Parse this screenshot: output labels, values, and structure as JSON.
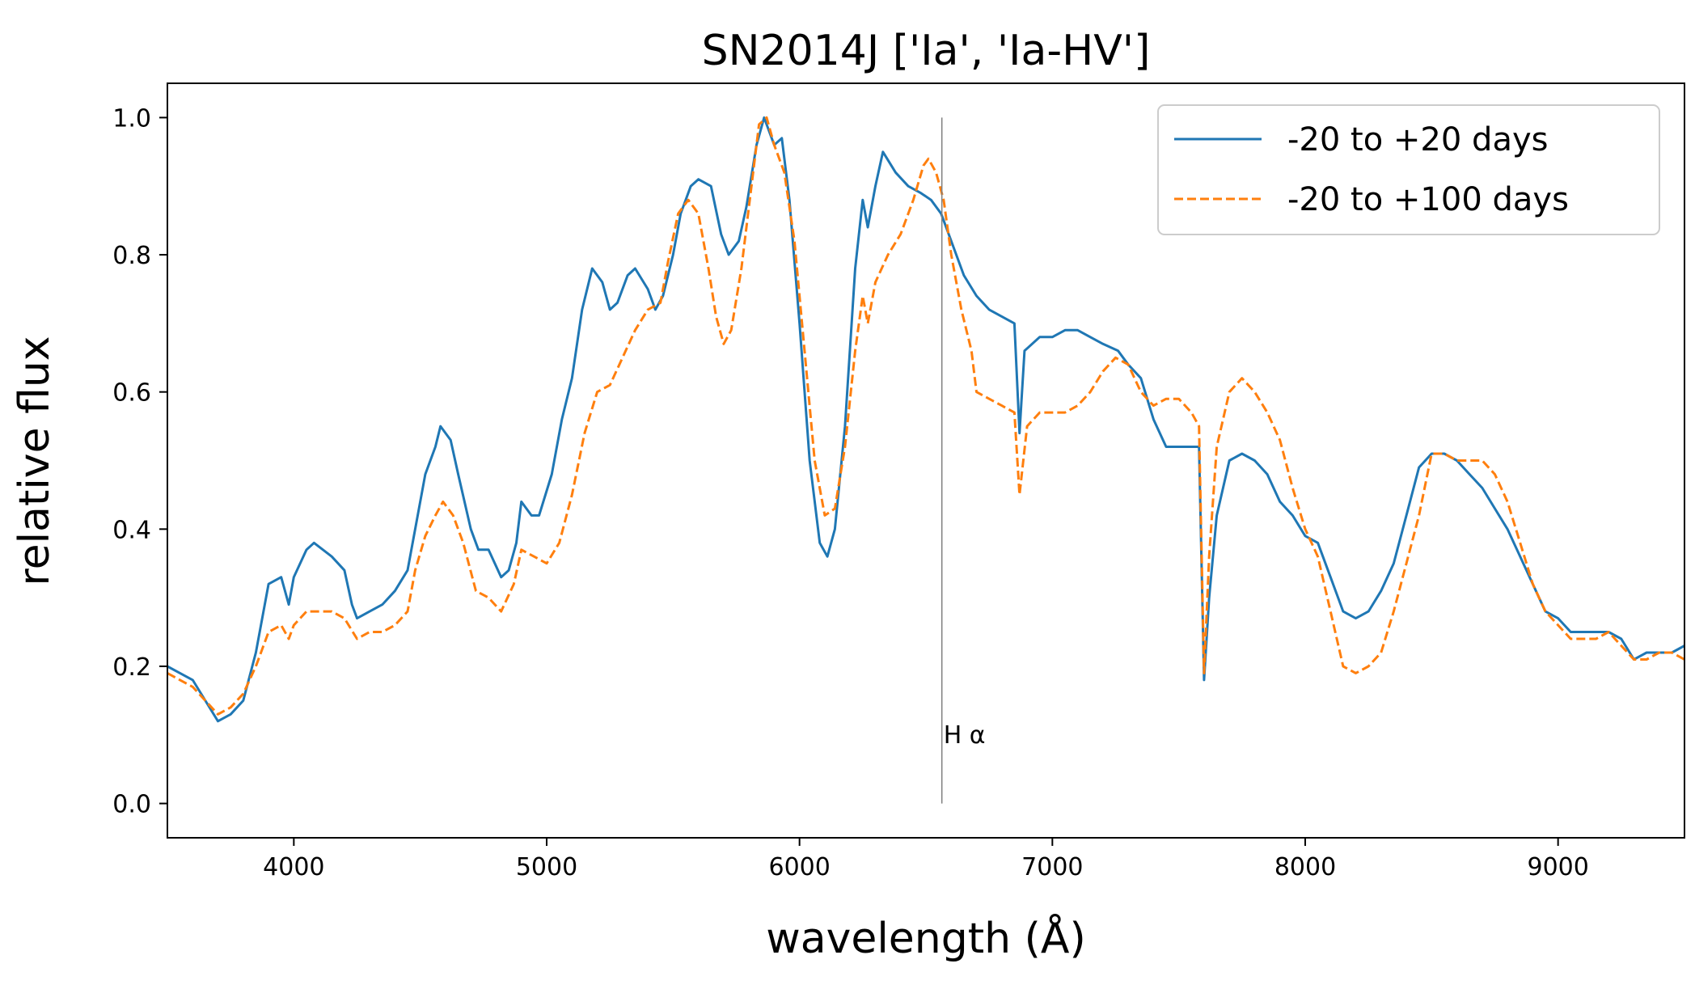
{
  "chart_data": {
    "type": "line",
    "title": "SN2014J ['Ia', 'Ia-HV']",
    "xlabel": "wavelength (Å)",
    "ylabel": "relative flux",
    "xlim": [
      3500,
      9500
    ],
    "ylim": [
      -0.05,
      1.05
    ],
    "xticks": [
      4000,
      5000,
      6000,
      7000,
      8000,
      9000
    ],
    "yticks": [
      0.0,
      0.2,
      0.4,
      0.6,
      0.8,
      1.0
    ],
    "ytick_labels": [
      "0.0",
      "0.2",
      "0.4",
      "0.6",
      "0.8",
      "1.0"
    ],
    "grid": false,
    "legend_position": "top-right",
    "annotation": {
      "label": "H α",
      "x": 6563,
      "y_text": 0.1,
      "line_y": [
        0.0,
        1.0
      ],
      "color": "#808080"
    },
    "series": [
      {
        "name": "-20 to +20 days",
        "color": "#1f77b4",
        "dash": "solid",
        "points": [
          [
            3500,
            0.2
          ],
          [
            3550,
            0.19
          ],
          [
            3600,
            0.18
          ],
          [
            3650,
            0.15
          ],
          [
            3700,
            0.12
          ],
          [
            3750,
            0.13
          ],
          [
            3800,
            0.15
          ],
          [
            3850,
            0.22
          ],
          [
            3900,
            0.32
          ],
          [
            3950,
            0.33
          ],
          [
            3980,
            0.29
          ],
          [
            4000,
            0.33
          ],
          [
            4050,
            0.37
          ],
          [
            4080,
            0.38
          ],
          [
            4150,
            0.36
          ],
          [
            4200,
            0.34
          ],
          [
            4230,
            0.29
          ],
          [
            4250,
            0.27
          ],
          [
            4300,
            0.28
          ],
          [
            4350,
            0.29
          ],
          [
            4400,
            0.31
          ],
          [
            4450,
            0.34
          ],
          [
            4480,
            0.4
          ],
          [
            4520,
            0.48
          ],
          [
            4560,
            0.52
          ],
          [
            4580,
            0.55
          ],
          [
            4620,
            0.53
          ],
          [
            4650,
            0.48
          ],
          [
            4700,
            0.4
          ],
          [
            4730,
            0.37
          ],
          [
            4770,
            0.37
          ],
          [
            4820,
            0.33
          ],
          [
            4850,
            0.34
          ],
          [
            4880,
            0.38
          ],
          [
            4900,
            0.44
          ],
          [
            4940,
            0.42
          ],
          [
            4970,
            0.42
          ],
          [
            5020,
            0.48
          ],
          [
            5060,
            0.56
          ],
          [
            5100,
            0.62
          ],
          [
            5140,
            0.72
          ],
          [
            5180,
            0.78
          ],
          [
            5220,
            0.76
          ],
          [
            5250,
            0.72
          ],
          [
            5280,
            0.73
          ],
          [
            5320,
            0.77
          ],
          [
            5350,
            0.78
          ],
          [
            5400,
            0.75
          ],
          [
            5430,
            0.72
          ],
          [
            5460,
            0.74
          ],
          [
            5500,
            0.8
          ],
          [
            5530,
            0.86
          ],
          [
            5570,
            0.9
          ],
          [
            5600,
            0.91
          ],
          [
            5650,
            0.9
          ],
          [
            5690,
            0.83
          ],
          [
            5720,
            0.8
          ],
          [
            5760,
            0.82
          ],
          [
            5790,
            0.87
          ],
          [
            5830,
            0.96
          ],
          [
            5860,
            1.0
          ],
          [
            5880,
            0.98
          ],
          [
            5900,
            0.96
          ],
          [
            5930,
            0.97
          ],
          [
            5960,
            0.88
          ],
          [
            6000,
            0.7
          ],
          [
            6040,
            0.5
          ],
          [
            6080,
            0.38
          ],
          [
            6110,
            0.36
          ],
          [
            6140,
            0.4
          ],
          [
            6180,
            0.55
          ],
          [
            6220,
            0.78
          ],
          [
            6250,
            0.88
          ],
          [
            6270,
            0.84
          ],
          [
            6300,
            0.9
          ],
          [
            6330,
            0.95
          ],
          [
            6380,
            0.92
          ],
          [
            6430,
            0.9
          ],
          [
            6480,
            0.89
          ],
          [
            6520,
            0.88
          ],
          [
            6560,
            0.86
          ],
          [
            6600,
            0.82
          ],
          [
            6650,
            0.77
          ],
          [
            6700,
            0.74
          ],
          [
            6750,
            0.72
          ],
          [
            6800,
            0.71
          ],
          [
            6850,
            0.7
          ],
          [
            6870,
            0.54
          ],
          [
            6890,
            0.66
          ],
          [
            6950,
            0.68
          ],
          [
            7000,
            0.68
          ],
          [
            7050,
            0.69
          ],
          [
            7100,
            0.69
          ],
          [
            7150,
            0.68
          ],
          [
            7200,
            0.67
          ],
          [
            7260,
            0.66
          ],
          [
            7300,
            0.64
          ],
          [
            7350,
            0.62
          ],
          [
            7400,
            0.56
          ],
          [
            7450,
            0.52
          ],
          [
            7500,
            0.52
          ],
          [
            7550,
            0.52
          ],
          [
            7580,
            0.52
          ],
          [
            7600,
            0.18
          ],
          [
            7620,
            0.3
          ],
          [
            7650,
            0.42
          ],
          [
            7700,
            0.5
          ],
          [
            7750,
            0.51
          ],
          [
            7800,
            0.5
          ],
          [
            7850,
            0.48
          ],
          [
            7900,
            0.44
          ],
          [
            7950,
            0.42
          ],
          [
            8000,
            0.39
          ],
          [
            8050,
            0.38
          ],
          [
            8100,
            0.33
          ],
          [
            8150,
            0.28
          ],
          [
            8200,
            0.27
          ],
          [
            8250,
            0.28
          ],
          [
            8300,
            0.31
          ],
          [
            8350,
            0.35
          ],
          [
            8400,
            0.42
          ],
          [
            8450,
            0.49
          ],
          [
            8500,
            0.51
          ],
          [
            8550,
            0.51
          ],
          [
            8600,
            0.5
          ],
          [
            8650,
            0.48
          ],
          [
            8700,
            0.46
          ],
          [
            8750,
            0.43
          ],
          [
            8800,
            0.4
          ],
          [
            8850,
            0.36
          ],
          [
            8900,
            0.32
          ],
          [
            8950,
            0.28
          ],
          [
            9000,
            0.27
          ],
          [
            9050,
            0.25
          ],
          [
            9100,
            0.25
          ],
          [
            9150,
            0.25
          ],
          [
            9200,
            0.25
          ],
          [
            9250,
            0.24
          ],
          [
            9300,
            0.21
          ],
          [
            9350,
            0.22
          ],
          [
            9400,
            0.22
          ],
          [
            9450,
            0.22
          ],
          [
            9500,
            0.23
          ]
        ]
      },
      {
        "name": "-20 to +100 days",
        "color": "#ff7f0e",
        "dash": "dashed",
        "points": [
          [
            3500,
            0.19
          ],
          [
            3550,
            0.18
          ],
          [
            3600,
            0.17
          ],
          [
            3650,
            0.15
          ],
          [
            3700,
            0.13
          ],
          [
            3750,
            0.14
          ],
          [
            3800,
            0.16
          ],
          [
            3850,
            0.2
          ],
          [
            3900,
            0.25
          ],
          [
            3950,
            0.26
          ],
          [
            3980,
            0.24
          ],
          [
            4000,
            0.26
          ],
          [
            4050,
            0.28
          ],
          [
            4100,
            0.28
          ],
          [
            4150,
            0.28
          ],
          [
            4200,
            0.27
          ],
          [
            4250,
            0.24
          ],
          [
            4300,
            0.25
          ],
          [
            4350,
            0.25
          ],
          [
            4400,
            0.26
          ],
          [
            4450,
            0.28
          ],
          [
            4480,
            0.34
          ],
          [
            4520,
            0.39
          ],
          [
            4560,
            0.42
          ],
          [
            4590,
            0.44
          ],
          [
            4630,
            0.42
          ],
          [
            4670,
            0.38
          ],
          [
            4720,
            0.31
          ],
          [
            4770,
            0.3
          ],
          [
            4820,
            0.28
          ],
          [
            4870,
            0.32
          ],
          [
            4900,
            0.37
          ],
          [
            4950,
            0.36
          ],
          [
            5000,
            0.35
          ],
          [
            5050,
            0.38
          ],
          [
            5100,
            0.45
          ],
          [
            5150,
            0.54
          ],
          [
            5200,
            0.6
          ],
          [
            5250,
            0.61
          ],
          [
            5300,
            0.65
          ],
          [
            5350,
            0.69
          ],
          [
            5400,
            0.72
          ],
          [
            5450,
            0.73
          ],
          [
            5480,
            0.79
          ],
          [
            5520,
            0.86
          ],
          [
            5560,
            0.88
          ],
          [
            5600,
            0.86
          ],
          [
            5640,
            0.78
          ],
          [
            5670,
            0.71
          ],
          [
            5700,
            0.67
          ],
          [
            5730,
            0.69
          ],
          [
            5770,
            0.78
          ],
          [
            5800,
            0.87
          ],
          [
            5840,
            0.99
          ],
          [
            5870,
            1.0
          ],
          [
            5900,
            0.96
          ],
          [
            5940,
            0.92
          ],
          [
            5980,
            0.82
          ],
          [
            6020,
            0.66
          ],
          [
            6060,
            0.5
          ],
          [
            6100,
            0.42
          ],
          [
            6140,
            0.43
          ],
          [
            6180,
            0.52
          ],
          [
            6220,
            0.66
          ],
          [
            6250,
            0.74
          ],
          [
            6270,
            0.7
          ],
          [
            6300,
            0.76
          ],
          [
            6350,
            0.8
          ],
          [
            6400,
            0.83
          ],
          [
            6450,
            0.88
          ],
          [
            6490,
            0.93
          ],
          [
            6510,
            0.94
          ],
          [
            6540,
            0.92
          ],
          [
            6570,
            0.88
          ],
          [
            6600,
            0.8
          ],
          [
            6640,
            0.72
          ],
          [
            6680,
            0.66
          ],
          [
            6700,
            0.6
          ],
          [
            6750,
            0.59
          ],
          [
            6800,
            0.58
          ],
          [
            6850,
            0.57
          ],
          [
            6870,
            0.45
          ],
          [
            6900,
            0.55
          ],
          [
            6950,
            0.57
          ],
          [
            7000,
            0.57
          ],
          [
            7050,
            0.57
          ],
          [
            7100,
            0.58
          ],
          [
            7150,
            0.6
          ],
          [
            7200,
            0.63
          ],
          [
            7250,
            0.65
          ],
          [
            7300,
            0.64
          ],
          [
            7350,
            0.6
          ],
          [
            7400,
            0.58
          ],
          [
            7450,
            0.59
          ],
          [
            7500,
            0.59
          ],
          [
            7550,
            0.57
          ],
          [
            7580,
            0.55
          ],
          [
            7600,
            0.19
          ],
          [
            7620,
            0.36
          ],
          [
            7650,
            0.52
          ],
          [
            7700,
            0.6
          ],
          [
            7750,
            0.62
          ],
          [
            7800,
            0.6
          ],
          [
            7850,
            0.57
          ],
          [
            7900,
            0.53
          ],
          [
            7950,
            0.46
          ],
          [
            8000,
            0.4
          ],
          [
            8050,
            0.36
          ],
          [
            8100,
            0.28
          ],
          [
            8150,
            0.2
          ],
          [
            8200,
            0.19
          ],
          [
            8250,
            0.2
          ],
          [
            8300,
            0.22
          ],
          [
            8350,
            0.28
          ],
          [
            8400,
            0.35
          ],
          [
            8450,
            0.42
          ],
          [
            8500,
            0.51
          ],
          [
            8550,
            0.51
          ],
          [
            8600,
            0.5
          ],
          [
            8650,
            0.5
          ],
          [
            8700,
            0.5
          ],
          [
            8750,
            0.48
          ],
          [
            8800,
            0.44
          ],
          [
            8850,
            0.38
          ],
          [
            8900,
            0.32
          ],
          [
            8950,
            0.28
          ],
          [
            9000,
            0.26
          ],
          [
            9050,
            0.24
          ],
          [
            9100,
            0.24
          ],
          [
            9150,
            0.24
          ],
          [
            9200,
            0.25
          ],
          [
            9250,
            0.23
          ],
          [
            9300,
            0.21
          ],
          [
            9350,
            0.21
          ],
          [
            9400,
            0.22
          ],
          [
            9450,
            0.22
          ],
          [
            9500,
            0.21
          ]
        ]
      }
    ]
  }
}
